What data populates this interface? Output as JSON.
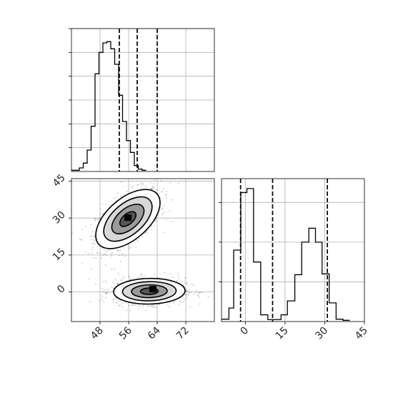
{
  "chart_data": [
    {
      "type": "histogram",
      "panel": "top-left",
      "variable": "param_1",
      "xlim": [
        40,
        80
      ],
      "grid": true,
      "bins": [
        {
          "x": 40.0,
          "h": 0.5
        },
        {
          "x": 41.1,
          "h": 0.5
        },
        {
          "x": 42.2,
          "h": 1.5
        },
        {
          "x": 43.3,
          "h": 3.5
        },
        {
          "x": 44.4,
          "h": 9
        },
        {
          "x": 45.5,
          "h": 19
        },
        {
          "x": 46.6,
          "h": 41
        },
        {
          "x": 47.7,
          "h": 50
        },
        {
          "x": 48.8,
          "h": 54
        },
        {
          "x": 49.9,
          "h": 54.5
        },
        {
          "x": 51.0,
          "h": 51.5
        },
        {
          "x": 52.1,
          "h": 45
        },
        {
          "x": 53.2,
          "h": 32
        },
        {
          "x": 54.3,
          "h": 21
        },
        {
          "x": 55.4,
          "h": 13
        },
        {
          "x": 56.5,
          "h": 8
        },
        {
          "x": 57.6,
          "h": 2.5
        },
        {
          "x": 58.7,
          "h": 1
        },
        {
          "x": 59.8,
          "h": 0.5
        }
      ],
      "quantiles": [
        53.4,
        58.4,
        64.0
      ],
      "yticks": [
        10,
        20,
        30,
        40,
        50,
        60
      ],
      "ymax": 60
    },
    {
      "type": "histogram",
      "panel": "bottom-right",
      "variable": "param_2",
      "xlim": [
        -9,
        45
      ],
      "xticks": [
        0,
        15,
        30,
        45
      ],
      "xtick_labels": [
        "0",
        "15",
        "30",
        "45"
      ],
      "grid": true,
      "bins": [
        {
          "x": -9.0,
          "h": 0.6
        },
        {
          "x": -6.2,
          "h": 3.4
        },
        {
          "x": -4.4,
          "h": 18
        },
        {
          "x": -1.7,
          "h": 32.5
        },
        {
          "x": 0.6,
          "h": 33.5
        },
        {
          "x": 3.1,
          "h": 15
        },
        {
          "x": 5.8,
          "h": 1.7
        },
        {
          "x": 8.5,
          "h": 0.5
        },
        {
          "x": 11.2,
          "h": 0.5
        },
        {
          "x": 13.5,
          "h": 1.7
        },
        {
          "x": 15.9,
          "h": 5.2
        },
        {
          "x": 18.7,
          "h": 11.8
        },
        {
          "x": 21.3,
          "h": 20
        },
        {
          "x": 24.0,
          "h": 23.5
        },
        {
          "x": 26.5,
          "h": 20
        },
        {
          "x": 29.0,
          "h": 12
        },
        {
          "x": 31.7,
          "h": 4.7
        },
        {
          "x": 34.3,
          "h": 0.6
        },
        {
          "x": 36.9,
          "h": 0.3
        }
      ],
      "quantiles": [
        -1.8,
        10.3,
        31.0
      ],
      "yticks": [
        10,
        20,
        30
      ],
      "ymax": 36
    },
    {
      "type": "scatter-contour",
      "panel": "bottom-left",
      "x_variable": "param_1",
      "y_variable": "param_2",
      "xlim": [
        40,
        80
      ],
      "ylim": [
        -12,
        46
      ],
      "xticks": [
        48,
        56,
        64,
        72
      ],
      "xtick_labels": [
        "48",
        "56",
        "64",
        "72"
      ],
      "yticks": [
        0,
        15,
        30,
        45
      ],
      "ytick_labels": [
        "0",
        "15",
        "30",
        "45"
      ],
      "grid": true,
      "clusters": [
        {
          "cx": 55.8,
          "cy": 29.6,
          "sx": 4.5,
          "sy": 6.0,
          "rho": 0.55,
          "peak_x": 55.8,
          "peak_y": 30.0
        },
        {
          "cx": 61.8,
          "cy": 0.3,
          "sx": 5.0,
          "sy": 2.6,
          "rho": 0.05,
          "peak_x": 62.8,
          "peak_y": 1.0
        }
      ]
    }
  ]
}
